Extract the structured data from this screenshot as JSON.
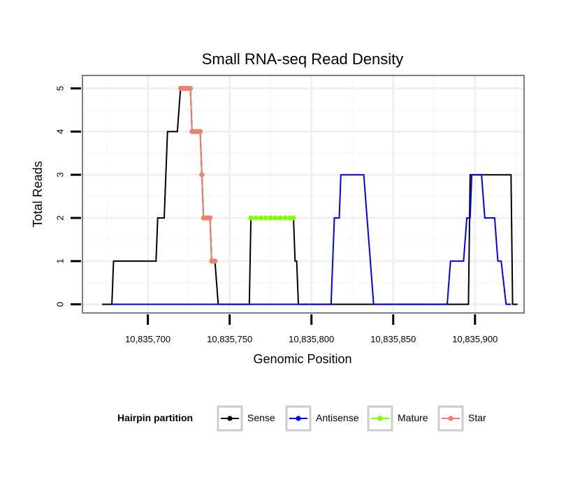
{
  "chart_data": {
    "type": "line",
    "title": "Small RNA-seq Read Density",
    "xlabel": "Genomic Position",
    "ylabel": "Total Reads",
    "xlim": [
      10835660,
      10835930
    ],
    "ylim": [
      -0.2,
      5.3
    ],
    "xticks": [
      10835700,
      10835750,
      10835800,
      10835850,
      10835900
    ],
    "xtick_labels": [
      "10,835,700",
      "10,835,750",
      "10,835,800",
      "10,835,850",
      "10,835,900"
    ],
    "yticks": [
      0,
      1,
      2,
      3,
      4,
      5
    ],
    "ytick_labels": [
      "0",
      "1",
      "2",
      "3",
      "4",
      "5"
    ],
    "legend": {
      "title": "Hairpin partition",
      "position": "bottom",
      "entries": [
        "Sense",
        "Antisense",
        "Mature",
        "Star"
      ]
    },
    "series": [
      {
        "name": "Sense",
        "color": "#000000",
        "points": [
          [
            10835672,
            0
          ],
          [
            10835678,
            0
          ],
          [
            10835679,
            1
          ],
          [
            10835705,
            1
          ],
          [
            10835706,
            2
          ],
          [
            10835710,
            2
          ],
          [
            10835712,
            4
          ],
          [
            10835718,
            4
          ],
          [
            10835720,
            5
          ],
          [
            10835726,
            5
          ],
          [
            10835727,
            4
          ],
          [
            10835732,
            4
          ],
          [
            10835733,
            3
          ],
          [
            10835734,
            2
          ],
          [
            10835738,
            2
          ],
          [
            10835739,
            1
          ],
          [
            10835741,
            1
          ],
          [
            10835743,
            0
          ],
          [
            10835762,
            0
          ],
          [
            10835763,
            2
          ],
          [
            10835789,
            2
          ],
          [
            10835790,
            1
          ],
          [
            10835791,
            1
          ],
          [
            10835792,
            0
          ],
          [
            10835896,
            0
          ],
          [
            10835897,
            3
          ],
          [
            10835922,
            3
          ],
          [
            10835923,
            0
          ],
          [
            10835926,
            0
          ]
        ]
      },
      {
        "name": "Antisense",
        "color": "#0000FF",
        "points": [
          [
            10835678,
            0
          ],
          [
            10835812,
            0
          ],
          [
            10835814,
            2
          ],
          [
            10835817,
            2
          ],
          [
            10835818,
            3
          ],
          [
            10835832,
            3
          ],
          [
            10835836,
            1
          ],
          [
            10835838,
            0
          ],
          [
            10835883,
            0
          ],
          [
            10835885,
            1
          ],
          [
            10835893,
            1
          ],
          [
            10835895,
            2
          ],
          [
            10835897,
            2
          ],
          [
            10835898,
            3
          ],
          [
            10835904,
            3
          ],
          [
            10835906,
            2
          ],
          [
            10835912,
            2
          ],
          [
            10835914,
            1
          ],
          [
            10835916,
            1
          ],
          [
            10835919,
            0
          ],
          [
            10835922,
            0
          ]
        ]
      },
      {
        "name": "Mature",
        "color": "#7FFF00",
        "points": [
          [
            10835763,
            2
          ],
          [
            10835766,
            2
          ],
          [
            10835769,
            2
          ],
          [
            10835772,
            2
          ],
          [
            10835775,
            2
          ],
          [
            10835778,
            2
          ],
          [
            10835781,
            2
          ],
          [
            10835784,
            2
          ],
          [
            10835787,
            2
          ],
          [
            10835789,
            2
          ]
        ]
      },
      {
        "name": "Star",
        "color": "#F08070",
        "points": [
          [
            10835720,
            5
          ],
          [
            10835721,
            5
          ],
          [
            10835722,
            5
          ],
          [
            10835723,
            5
          ],
          [
            10835724,
            5
          ],
          [
            10835725,
            5
          ],
          [
            10835726,
            5
          ],
          [
            10835727,
            4
          ],
          [
            10835728,
            4
          ],
          [
            10835729,
            4
          ],
          [
            10835730,
            4
          ],
          [
            10835731,
            4
          ],
          [
            10835732,
            4
          ],
          [
            10835733,
            3
          ],
          [
            10835734,
            2
          ],
          [
            10835735,
            2
          ],
          [
            10835736,
            2
          ],
          [
            10835737,
            2
          ],
          [
            10835738,
            2
          ],
          [
            10835739,
            1
          ],
          [
            10835740,
            1
          ],
          [
            10835741,
            1
          ]
        ]
      }
    ]
  }
}
